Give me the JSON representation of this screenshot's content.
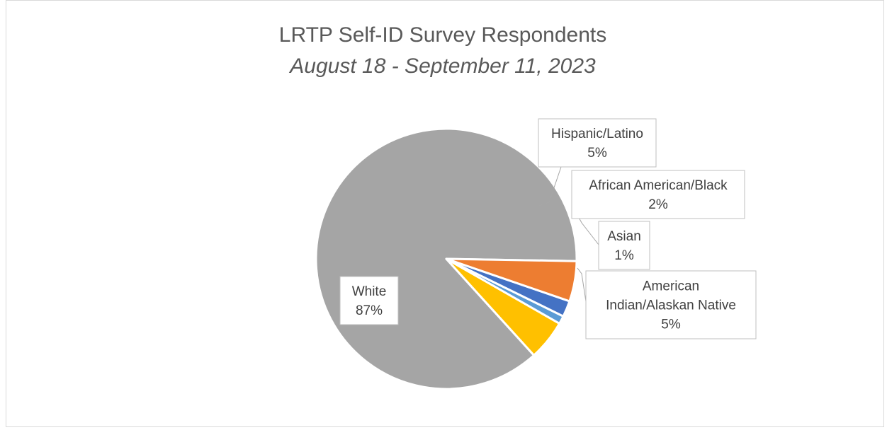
{
  "chart_data": {
    "type": "pie",
    "title": "LRTP Self-ID Survey Respondents",
    "subtitle": "August 18 - September  11, 2023",
    "slices": [
      {
        "name": "White",
        "value": 87,
        "label": "87%",
        "color": "#a5a5a5"
      },
      {
        "name": "Hispanic/Latino",
        "value": 5,
        "label": "5%",
        "color": "#ffc000"
      },
      {
        "name": "Asian",
        "value": 1,
        "label": "1%",
        "color": "#5b9bd5"
      },
      {
        "name": "African American/Black",
        "value": 2,
        "label": "2%",
        "color": "#4472c4"
      },
      {
        "name": "American Indian/Alaskan Native",
        "value": 5,
        "label": "5%",
        "color": "#ed7d31"
      }
    ],
    "legend": "none"
  }
}
